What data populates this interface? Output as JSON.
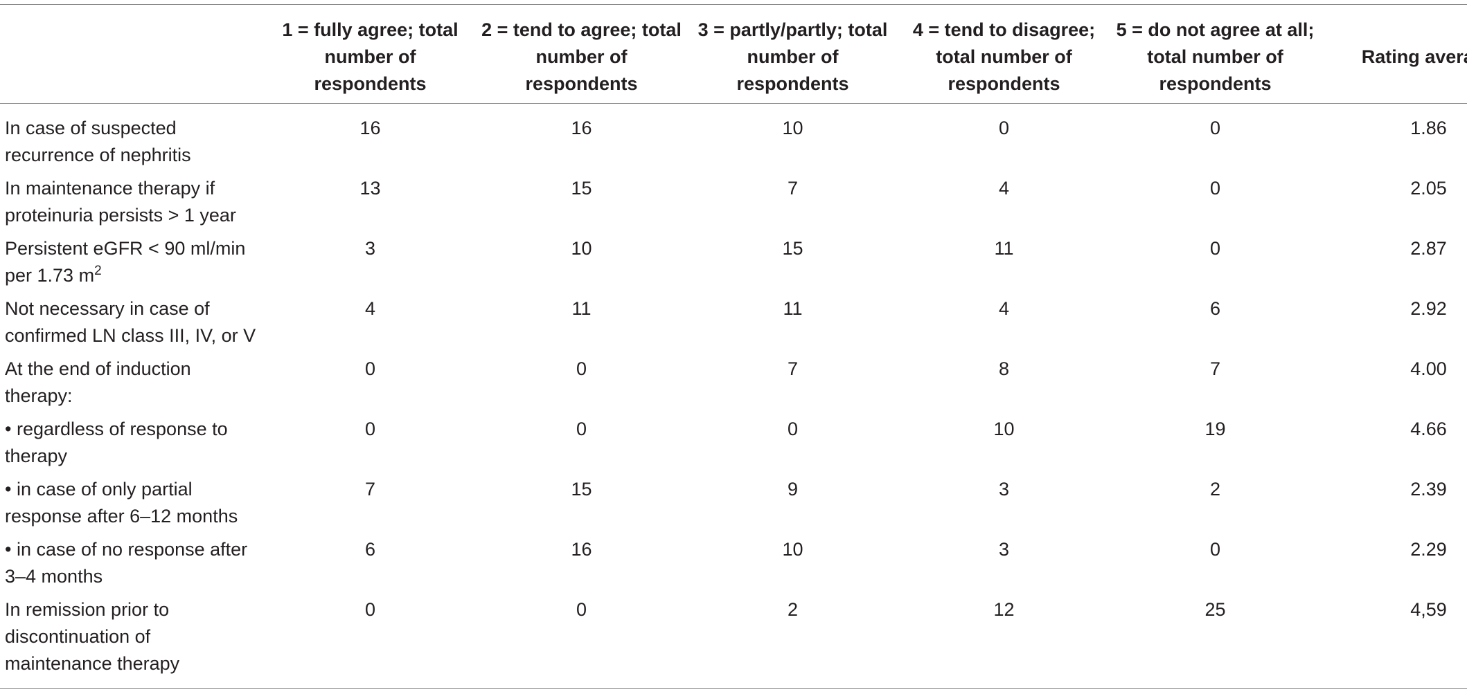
{
  "table": {
    "headers": [
      "",
      "1 = fully agree; total number of respondents",
      "2 = tend to agree; total number of respondents",
      "3 = partly/partly; total number of respondents",
      "4 = tend to disagree; total number of respondents",
      "5 = do not agree at all; total number of respondents",
      "Rating average"
    ],
    "rows": [
      {
        "label": "In case of suspected recurrence of nephritis",
        "values": [
          "16",
          "16",
          "10",
          "0",
          "0",
          "1.86"
        ]
      },
      {
        "label": "In maintenance therapy if proteinuria persists > 1 year",
        "values": [
          "13",
          "15",
          "7",
          "4",
          "0",
          "2.05"
        ]
      },
      {
        "label": "Persistent eGFR < 90 ml/min per 1.73 m",
        "label_sup": "2",
        "values": [
          "3",
          "10",
          "15",
          "11",
          "0",
          "2.87"
        ]
      },
      {
        "label": "Not necessary in case of confirmed LN class III, IV, or V",
        "values": [
          "4",
          "11",
          "11",
          "4",
          "6",
          "2.92"
        ]
      },
      {
        "label": "At the end of induction therapy:",
        "values": [
          "0",
          "0",
          "7",
          "8",
          "7",
          "4.00"
        ]
      },
      {
        "label": "• regardless of response to therapy",
        "values": [
          "0",
          "0",
          "0",
          "10",
          "19",
          "4.66"
        ]
      },
      {
        "label": "• in case of only partial response after 6–12 months",
        "values": [
          "7",
          "15",
          "9",
          "3",
          "2",
          "2.39"
        ]
      },
      {
        "label": "• in case of no response after 3–4 months",
        "values": [
          "6",
          "16",
          "10",
          "3",
          "0",
          "2.29"
        ]
      },
      {
        "label": "In remission prior to discontinuation of maintenance therapy",
        "values": [
          "0",
          "0",
          "2",
          "12",
          "25",
          "4,59"
        ]
      }
    ]
  }
}
